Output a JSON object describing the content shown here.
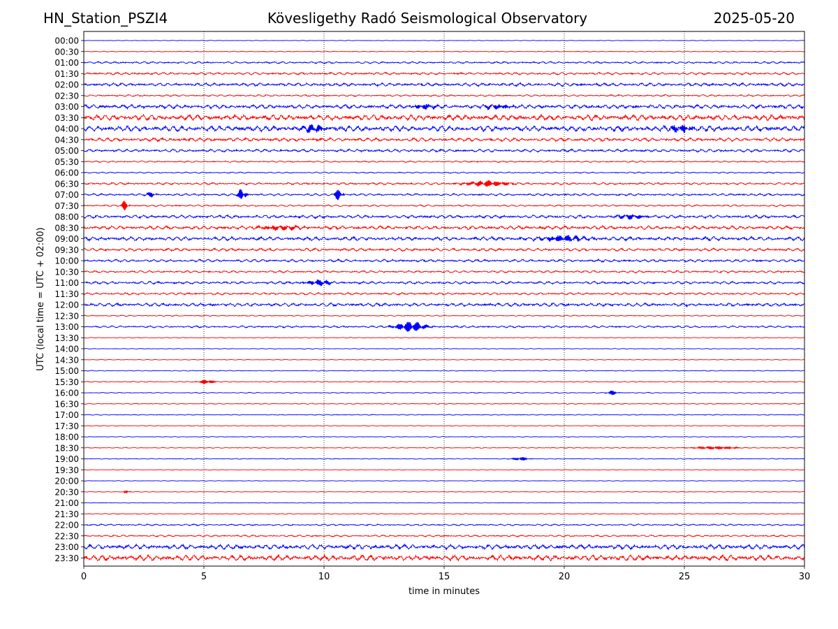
{
  "header": {
    "station": "HN_Station_PSZI4",
    "observatory": "Kövesligethy Radó Seismological Observatory",
    "date": "2025-05-20"
  },
  "chart_data": {
    "type": "line",
    "title": "Kövesligethy Radó Seismological Observatory",
    "xlabel": "time in minutes",
    "ylabel": "UTC (local time = UTC + 02:00)",
    "xlim": [
      0,
      30
    ],
    "x_ticks": [
      "0",
      "5",
      "10",
      "15",
      "20",
      "25",
      "30"
    ],
    "row_labels": [
      "00:00",
      "00:30",
      "01:00",
      "01:30",
      "02:00",
      "02:30",
      "03:00",
      "03:30",
      "04:00",
      "04:30",
      "05:00",
      "05:30",
      "06:00",
      "06:30",
      "07:00",
      "07:30",
      "08:00",
      "08:30",
      "09:00",
      "09:30",
      "10:00",
      "10:30",
      "11:00",
      "11:30",
      "12:00",
      "12:30",
      "13:00",
      "13:30",
      "14:00",
      "14:30",
      "15:00",
      "15:30",
      "16:00",
      "16:30",
      "17:00",
      "17:30",
      "18:00",
      "18:30",
      "19:00",
      "19:30",
      "20:00",
      "20:30",
      "21:00",
      "21:30",
      "22:00",
      "22:30",
      "23:00",
      "23:30"
    ],
    "trace_colors": [
      "#0000ff",
      "#ff0000"
    ],
    "vertical_grid": "dotted",
    "noise_level": [
      0.5,
      0.8,
      1.8,
      2.2,
      3.0,
      1.6,
      3.6,
      5.0,
      5.0,
      3.2,
      2.6,
      1.4,
      1.2,
      2.0,
      2.0,
      1.6,
      2.8,
      3.2,
      3.4,
      2.6,
      2.4,
      2.0,
      2.4,
      2.0,
      3.0,
      1.0,
      1.8,
      0.7,
      0.6,
      0.6,
      0.7,
      0.9,
      0.8,
      0.9,
      0.8,
      0.7,
      0.6,
      0.8,
      0.7,
      0.5,
      0.5,
      0.6,
      0.5,
      0.8,
      1.5,
      1.6,
      4.2,
      5.0
    ],
    "events": [
      {
        "row": 6,
        "minute": 14.2,
        "amp": 3.5,
        "width": 0.4
      },
      {
        "row": 6,
        "minute": 17.2,
        "amp": 3.0,
        "width": 0.6
      },
      {
        "row": 8,
        "minute": 9.6,
        "amp": 5.0,
        "width": 0.5
      },
      {
        "row": 8,
        "minute": 24.9,
        "amp": 5.0,
        "width": 0.5
      },
      {
        "row": 13,
        "minute": 16.8,
        "amp": 4.0,
        "width": 0.8
      },
      {
        "row": 14,
        "minute": 6.6,
        "amp": 10.0,
        "width": 0.15
      },
      {
        "row": 14,
        "minute": 10.6,
        "amp": 8.0,
        "width": 0.15
      },
      {
        "row": 14,
        "minute": 2.8,
        "amp": 3.0,
        "width": 0.2
      },
      {
        "row": 15,
        "minute": 1.7,
        "amp": 7.0,
        "width": 0.12
      },
      {
        "row": 16,
        "minute": 22.8,
        "amp": 3.0,
        "width": 0.6
      },
      {
        "row": 17,
        "minute": 8.2,
        "amp": 3.0,
        "width": 0.8
      },
      {
        "row": 18,
        "minute": 20.0,
        "amp": 4.0,
        "width": 0.9
      },
      {
        "row": 22,
        "minute": 9.8,
        "amp": 4.0,
        "width": 0.5
      },
      {
        "row": 26,
        "minute": 13.6,
        "amp": 7.0,
        "width": 0.6
      },
      {
        "row": 31,
        "minute": 5.1,
        "amp": 3.0,
        "width": 0.3
      },
      {
        "row": 32,
        "minute": 22.0,
        "amp": 3.0,
        "width": 0.2
      },
      {
        "row": 37,
        "minute": 26.3,
        "amp": 2.0,
        "width": 0.8
      },
      {
        "row": 38,
        "minute": 18.2,
        "amp": 2.5,
        "width": 0.3
      },
      {
        "row": 41,
        "minute": 1.8,
        "amp": 3.0,
        "width": 0.1
      }
    ]
  }
}
